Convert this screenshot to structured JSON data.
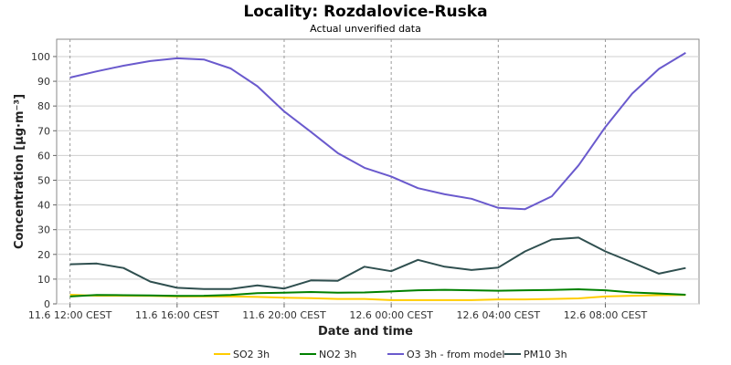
{
  "chart_data": {
    "type": "line",
    "title": "Locality: Rozdalovice-Ruska",
    "subtitle": "Actual unverified data",
    "xlabel": "Date and time",
    "ylabel": "Concentration [µg·m⁻³]",
    "ylim": [
      0,
      107
    ],
    "yticks": [
      0,
      10,
      20,
      30,
      40,
      50,
      60,
      70,
      80,
      90,
      100
    ],
    "xlim": [
      -0.5,
      23.5
    ],
    "xticks": [
      {
        "x": 0,
        "label": "11.6 12:00 CEST"
      },
      {
        "x": 4,
        "label": "11.6 16:00 CEST"
      },
      {
        "x": 8,
        "label": "11.6 20:00 CEST"
      },
      {
        "x": 12,
        "label": "12.6 00:00 CEST"
      },
      {
        "x": 16,
        "label": "12.6 04:00 CEST"
      },
      {
        "x": 20,
        "label": "12.6 08:00 CEST"
      }
    ],
    "grid": true,
    "legend_position": "bottom",
    "x": [
      0,
      1,
      2,
      3,
      4,
      5,
      6,
      7,
      8,
      9,
      10,
      11,
      12,
      13,
      14,
      15,
      16,
      17,
      18,
      19,
      20,
      21,
      22,
      23
    ],
    "series": [
      {
        "name": "SO2 3h",
        "color": "#FFCC00",
        "values": [
          3.7,
          3.3,
          3.3,
          3.2,
          3.0,
          3.0,
          3.0,
          2.8,
          2.5,
          2.3,
          2.0,
          2.0,
          1.5,
          1.5,
          1.5,
          1.5,
          1.8,
          1.8,
          2.0,
          2.2,
          3.0,
          3.3,
          3.5,
          3.6
        ]
      },
      {
        "name": "NO2 3h",
        "color": "#008000",
        "values": [
          3.0,
          3.6,
          3.5,
          3.4,
          3.2,
          3.3,
          3.6,
          4.3,
          4.5,
          4.8,
          4.5,
          4.6,
          5.0,
          5.5,
          5.7,
          5.5,
          5.3,
          5.5,
          5.6,
          5.9,
          5.5,
          4.6,
          4.2,
          3.7
        ]
      },
      {
        "name": "O3 3h - from model",
        "color": "#6A5ACD",
        "values": [
          91.5,
          94,
          96.3,
          98.2,
          99.3,
          98.8,
          95.2,
          88,
          77.8,
          69.5,
          61,
          55,
          51.5,
          46.8,
          44.3,
          42.5,
          38.8,
          38.3,
          43.5,
          56,
          71.5,
          85,
          95,
          101.5
        ]
      },
      {
        "name": "PM10 3h",
        "color": "#2F4F4F",
        "values": [
          16,
          16.3,
          14.5,
          9,
          6.5,
          6,
          6,
          7.5,
          6.2,
          9.5,
          9.3,
          15,
          13.2,
          17.8,
          15,
          13.7,
          14.7,
          21.2,
          26,
          26.8,
          21.2,
          16.8,
          12.2,
          14.5
        ]
      }
    ]
  }
}
